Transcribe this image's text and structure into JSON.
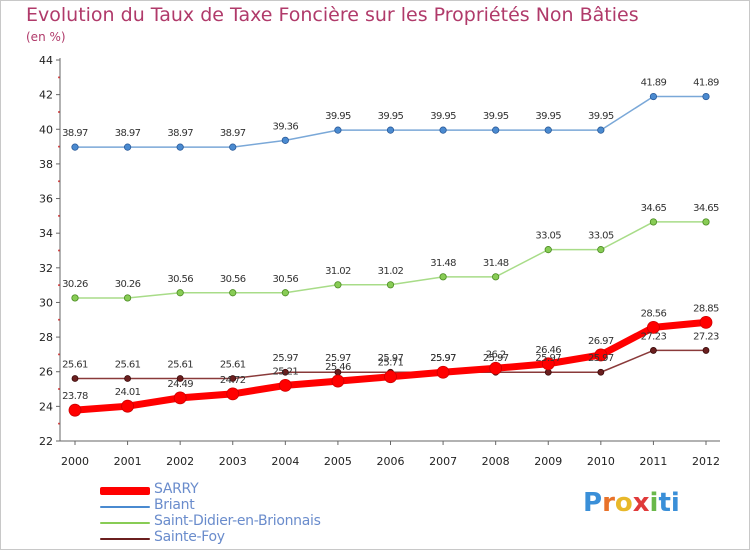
{
  "title": "Evolution du Taux de Taxe Foncière sur les Propriétés Non Bâties",
  "subtitle": "(en %)",
  "logo": [
    "P",
    "r",
    "o",
    "x",
    "i",
    "ti"
  ],
  "chart_data": {
    "type": "line",
    "title": "Evolution du Taux de Taxe Foncière sur les Propriétés Non Bâties",
    "ylabel": "(en %)",
    "xlabel": "",
    "ylim": [
      22,
      44
    ],
    "yticks": [
      22,
      24,
      26,
      28,
      30,
      32,
      34,
      36,
      38,
      40,
      42,
      44
    ],
    "x": [
      "2000",
      "2001",
      "2002",
      "2003",
      "2004",
      "2005",
      "2006",
      "2007",
      "2008",
      "2009",
      "2010",
      "2011",
      "2012"
    ],
    "grid": false,
    "legend_position": "bottom-left",
    "series": [
      {
        "name": "SARRY",
        "color": "#ff0000",
        "values": [
          23.78,
          24.01,
          24.49,
          24.72,
          25.21,
          25.46,
          25.71,
          25.97,
          26.2,
          26.46,
          26.97,
          28.56,
          28.85
        ],
        "labels": [
          "23.78",
          "24.01",
          "24.49",
          "24.72",
          "25.21",
          "25.46",
          "25.71",
          "25.97",
          "26.2",
          "26.46",
          "26.97",
          "28.56",
          "28.85"
        ]
      },
      {
        "name": "Briant",
        "color": "#4a8ad0",
        "values": [
          38.97,
          38.97,
          38.97,
          38.97,
          39.36,
          39.95,
          39.95,
          39.95,
          39.95,
          39.95,
          39.95,
          41.89,
          41.89
        ],
        "labels": [
          "38.97",
          "38.97",
          "38.97",
          "38.97",
          "39.36",
          "39.95",
          "39.95",
          "39.95",
          "39.95",
          "39.95",
          "39.95",
          "41.89",
          "41.89"
        ]
      },
      {
        "name": "Saint-Didier-en-Brionnais",
        "color": "#88cc55",
        "values": [
          30.26,
          30.26,
          30.56,
          30.56,
          30.56,
          31.02,
          31.02,
          31.48,
          31.48,
          33.05,
          33.05,
          34.65,
          34.65
        ],
        "labels": [
          "30.26",
          "30.26",
          "30.56",
          "30.56",
          "30.56",
          "31.02",
          "31.02",
          "31.48",
          "31.48",
          "33.05",
          "33.05",
          "34.65",
          "34.65"
        ]
      },
      {
        "name": "Sainte-Foy",
        "color": "#6b1f1f",
        "values": [
          25.61,
          25.61,
          25.61,
          25.61,
          25.97,
          25.97,
          25.97,
          25.97,
          25.97,
          25.97,
          25.97,
          27.23,
          27.23
        ],
        "labels": [
          "25.61",
          "25.61",
          "25.61",
          "25.61",
          "25.97",
          "25.97",
          "25.97",
          "25.97",
          "25.97",
          "25.97",
          "25.97",
          "27.23",
          "27.23"
        ]
      }
    ]
  }
}
